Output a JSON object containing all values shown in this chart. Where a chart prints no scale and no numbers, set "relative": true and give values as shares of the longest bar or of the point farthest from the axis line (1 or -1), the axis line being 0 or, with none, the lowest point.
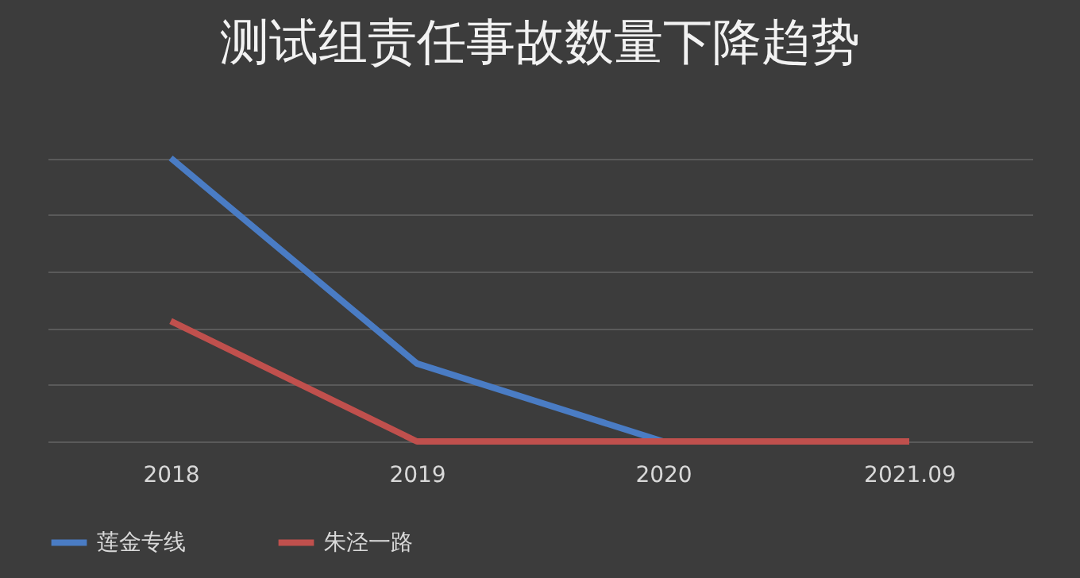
{
  "chart_data": {
    "type": "line",
    "title": "测试组责任事故数量下降趋势",
    "categories": [
      "2018",
      "2019",
      "2020",
      "2021.09"
    ],
    "relative": true,
    "grid": "y",
    "legend": "bottom",
    "line_style": "solid",
    "marker": "none",
    "series": [
      {
        "name": "莲金专线",
        "color": "#4a7cc4",
        "values": [
          1,
          0.275,
          0,
          null
        ]
      },
      {
        "name": "朱泾一路",
        "color": "#c0504d",
        "values": [
          0.425,
          0,
          0,
          0
        ]
      }
    ]
  }
}
